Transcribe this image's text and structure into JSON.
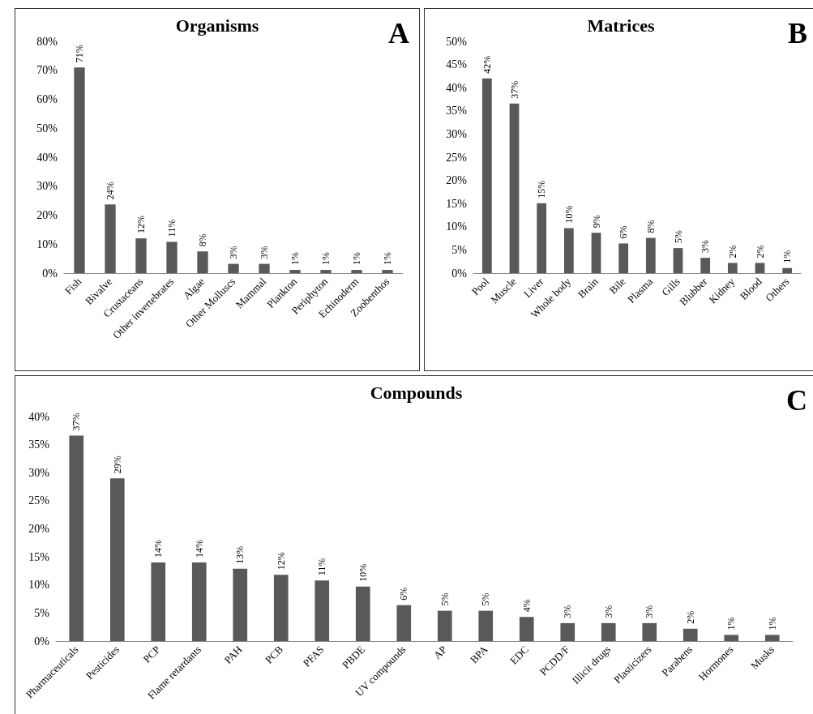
{
  "chart_data": [
    {
      "type": "bar",
      "title": "Organisms",
      "annotations": [
        "A"
      ],
      "categories": [
        "Fish",
        "Bivalve",
        "Crustaceans",
        "Other invertebrates",
        "Algae",
        "Other Molluscs",
        "Mammal",
        "Plankton",
        "Periphyton",
        "Echinoderm",
        "Zoobenthos"
      ],
      "values": [
        71,
        23.7,
        12,
        10.8,
        7.5,
        3.2,
        3.2,
        1.1,
        1.1,
        1.1,
        1.1
      ],
      "value_labels": [
        "71%",
        "24%",
        "12%",
        "11%",
        "8%",
        "3%",
        "3%",
        "1%",
        "1%",
        "1%",
        "1%"
      ],
      "color": "#595959",
      "ylim": [
        0,
        80
      ],
      "yticks": [
        {
          "value": 0,
          "label": "0%"
        },
        {
          "value": 10,
          "label": "10%"
        },
        {
          "value": 20,
          "label": "20%"
        },
        {
          "value": 30,
          "label": "30%"
        },
        {
          "value": 40,
          "label": "40%"
        },
        {
          "value": 50,
          "label": "50%"
        },
        {
          "value": 60,
          "label": "60%"
        },
        {
          "value": 70,
          "label": "70%"
        },
        {
          "value": 80,
          "label": "80%"
        }
      ],
      "grid": false
    },
    {
      "type": "bar",
      "title": "Matrices",
      "annotations": [
        "B"
      ],
      "categories": [
        "Pool",
        "Muscle",
        "Liver",
        "Whole body",
        "Brain",
        "Bile",
        "Plasma",
        "Gills",
        "Blubber",
        "Kidney",
        "Blood",
        "Others"
      ],
      "values": [
        42,
        36.6,
        15.1,
        9.7,
        8.7,
        6.4,
        7.6,
        5.4,
        3.3,
        2.2,
        2.2,
        1.1
      ],
      "value_labels": [
        "42%",
        "37%",
        "15%",
        "10%",
        "9%",
        "6%",
        "8%",
        "5%",
        "3%",
        "2%",
        "2%",
        "1%"
      ],
      "color": "#595959",
      "ylim": [
        0,
        50
      ],
      "yticks": [
        {
          "value": 0,
          "label": "0%"
        },
        {
          "value": 5,
          "label": "5%"
        },
        {
          "value": 10,
          "label": "10%"
        },
        {
          "value": 15,
          "label": "15%"
        },
        {
          "value": 20,
          "label": "20%"
        },
        {
          "value": 25,
          "label": "25%"
        },
        {
          "value": 30,
          "label": "30%"
        },
        {
          "value": 35,
          "label": "35%"
        },
        {
          "value": 40,
          "label": "40%"
        },
        {
          "value": 45,
          "label": "45%"
        },
        {
          "value": 50,
          "label": "50%"
        }
      ],
      "grid": false
    },
    {
      "type": "bar",
      "title": "Compounds",
      "annotations": [
        "C"
      ],
      "categories": [
        "Pharmaceuticals",
        "Pesticides",
        "PCP",
        "Flame retardants",
        "PAH",
        "PCB",
        "PFAS",
        "PBDE",
        "UV compounds",
        "AP",
        "BPA",
        "EDC",
        "PCDD/F",
        "Illicit drugs",
        "Plasticizers",
        "Parabens",
        "Hormones",
        "Musks"
      ],
      "values": [
        36.6,
        29,
        14,
        14,
        12.9,
        11.8,
        10.8,
        9.7,
        6.4,
        5.4,
        5.4,
        4.3,
        3.2,
        3.2,
        3.2,
        2.2,
        1.1,
        1.1
      ],
      "value_labels": [
        "37%",
        "29%",
        "14%",
        "14%",
        "13%",
        "12%",
        "11%",
        "10%",
        "6%",
        "5%",
        "5%",
        "4%",
        "3%",
        "3%",
        "3%",
        "2%",
        "1%",
        "1%"
      ],
      "color": "#595959",
      "ylim": [
        0,
        40
      ],
      "yticks": [
        {
          "value": 0,
          "label": "0%"
        },
        {
          "value": 5,
          "label": "5%"
        },
        {
          "value": 10,
          "label": "10%"
        },
        {
          "value": 15,
          "label": "15%"
        },
        {
          "value": 20,
          "label": "20%"
        },
        {
          "value": 25,
          "label": "25%"
        },
        {
          "value": 30,
          "label": "30%"
        },
        {
          "value": 35,
          "label": "35%"
        },
        {
          "value": 40,
          "label": "40%"
        }
      ],
      "grid": false
    }
  ]
}
